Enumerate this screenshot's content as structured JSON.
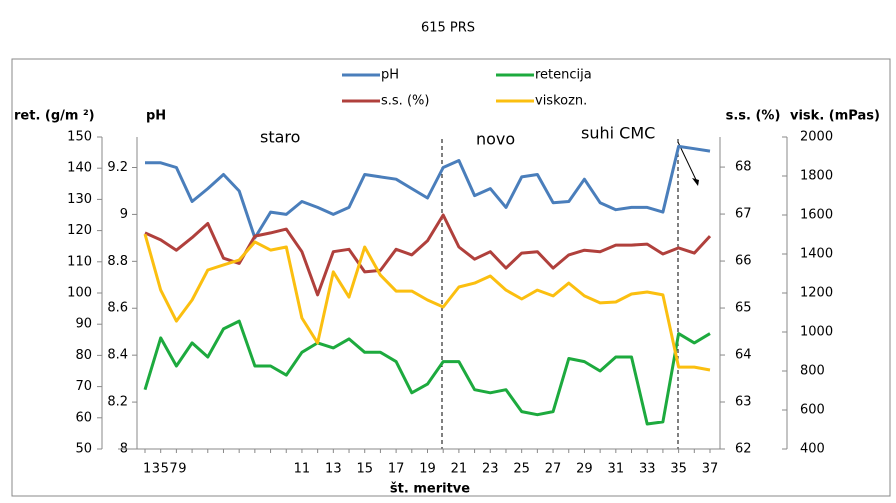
{
  "chart_data": {
    "type": "line",
    "title": "615 PRS",
    "xlabel": "št. meritve",
    "categories": [
      "1",
      null,
      "3",
      null,
      "5",
      null,
      "7",
      null,
      "9",
      null,
      "11",
      null,
      "13",
      null,
      "15",
      null,
      "17",
      null,
      "19",
      null,
      "21",
      null,
      "23",
      null,
      "25",
      null,
      "27",
      null,
      "29",
      null,
      "31",
      null,
      "33",
      null,
      "35",
      null,
      "37"
    ],
    "axes": [
      {
        "label": "ret. (g/m ²)",
        "lim": [
          50,
          150
        ],
        "ticks": [
          50,
          60,
          70,
          80,
          90,
          100,
          110,
          120,
          130,
          140,
          150
        ]
      },
      {
        "label": "pH",
        "lim": [
          8,
          9.33
        ],
        "ticks": [
          8,
          8.2,
          8.4,
          8.6,
          8.8,
          9,
          9.2
        ]
      },
      {
        "label": "s.s. (%)",
        "lim": [
          62,
          68.64
        ],
        "ticks": [
          62,
          63,
          64,
          65,
          66,
          67,
          68
        ]
      },
      {
        "label": "visk. (mPas)",
        "lim": [
          400,
          2000
        ],
        "ticks": [
          400,
          600,
          800,
          1000,
          1200,
          1400,
          1600,
          1800,
          2000
        ]
      }
    ],
    "series": [
      {
        "name": "pH",
        "color": "#4a7ebb",
        "axis": 1,
        "values": [
          9.22,
          9.22,
          9.2,
          9.055,
          9.11,
          9.17,
          9.1,
          8.9,
          9.01,
          9.0,
          9.055,
          9.03,
          9.0,
          9.03,
          9.17,
          9.16,
          9.15,
          9.11,
          9.07,
          9.2,
          9.23,
          9.08,
          9.11,
          9.03,
          9.16,
          9.17,
          9.05,
          9.055,
          9.15,
          9.05,
          9.02,
          9.03,
          9.03,
          9.01,
          9.29,
          9.28,
          9.27
        ]
      },
      {
        "name": "retencija",
        "color": "#1daa3e",
        "axis": 0,
        "values": [
          69,
          85.6,
          76.6,
          84,
          79.5,
          88.5,
          91,
          76.6,
          76.6,
          73.7,
          81,
          84,
          82.4,
          85.3,
          81,
          81,
          78,
          68,
          70.8,
          78,
          78,
          69,
          68,
          69,
          62,
          61,
          62,
          79,
          78,
          75,
          79.5,
          79.5,
          58,
          58.7,
          87,
          84,
          87
        ]
      },
      {
        "name": "s.s. (%)",
        "color": "#b0403c",
        "axis": 2,
        "values": [
          66.6,
          66.45,
          66.23,
          66.5,
          66.8,
          66.06,
          65.95,
          66.53,
          66.6,
          66.68,
          66.2,
          65.28,
          66.2,
          66.25,
          65.77,
          65.8,
          66.25,
          66.13,
          66.43,
          66.98,
          66.3,
          66.04,
          66.2,
          65.85,
          66.17,
          66.2,
          65.85,
          66.13,
          66.23,
          66.2,
          66.34,
          66.34,
          66.36,
          66.15,
          66.28,
          66.17,
          66.53
        ]
      },
      {
        "name": "viskozn.",
        "color": "#fbbf10",
        "axis": 3,
        "values": [
          1502,
          1215,
          1056,
          1164,
          1318,
          1344,
          1369,
          1462,
          1420,
          1436,
          1072,
          944,
          1308,
          1179,
          1436,
          1292,
          1210,
          1210,
          1164,
          1128,
          1231,
          1251,
          1287,
          1215,
          1169,
          1215,
          1185,
          1251,
          1185,
          1149,
          1154,
          1195,
          1205,
          1190,
          820,
          820,
          805
        ]
      }
    ],
    "annotations": [
      "staro",
      "novo",
      "suhi CMC"
    ]
  }
}
